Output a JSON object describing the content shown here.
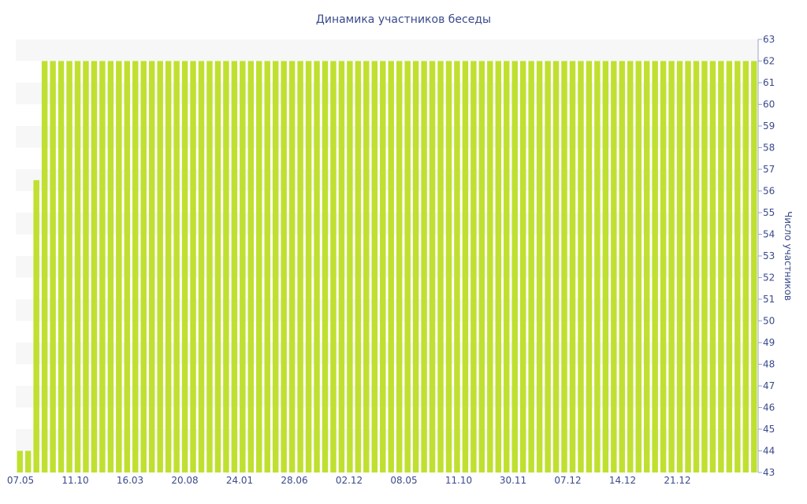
{
  "chart_data": {
    "type": "bar",
    "title": "Динамика участников беседы",
    "xlabel": "",
    "ylabel": "Число участников",
    "ylim": [
      43,
      63
    ],
    "yticks": [
      43,
      44,
      45,
      46,
      47,
      48,
      49,
      50,
      51,
      52,
      53,
      54,
      55,
      56,
      57,
      58,
      59,
      60,
      61,
      62,
      63
    ],
    "xtick_labels": [
      "07.05",
      "11.10",
      "16.03",
      "20.08",
      "24.01",
      "28.06",
      "02.12",
      "08.05",
      "11.10",
      "30.11",
      "07.12",
      "14.12",
      "21.12"
    ],
    "grid": "horizontal-bands",
    "y_axis_position": "right",
    "bar_color": "#bfe030",
    "values": [
      44,
      44,
      56.5,
      62,
      62,
      62,
      62,
      62,
      62,
      62,
      62,
      62,
      62,
      62,
      62,
      62,
      62,
      62,
      62,
      62,
      62,
      62,
      62,
      62,
      62,
      62,
      62,
      62,
      62,
      62,
      62,
      62,
      62,
      62,
      62,
      62,
      62,
      62,
      62,
      62,
      62,
      62,
      62,
      62,
      62,
      62,
      62,
      62,
      62,
      62,
      62,
      62,
      62,
      62,
      62,
      62,
      62,
      62,
      62,
      62,
      62,
      62,
      62,
      62,
      62,
      62,
      62,
      62,
      62,
      62,
      62,
      62,
      62,
      62,
      62,
      62,
      62,
      62,
      62,
      62,
      62,
      62,
      62,
      62,
      62,
      62,
      62,
      62,
      62,
      62
    ]
  }
}
